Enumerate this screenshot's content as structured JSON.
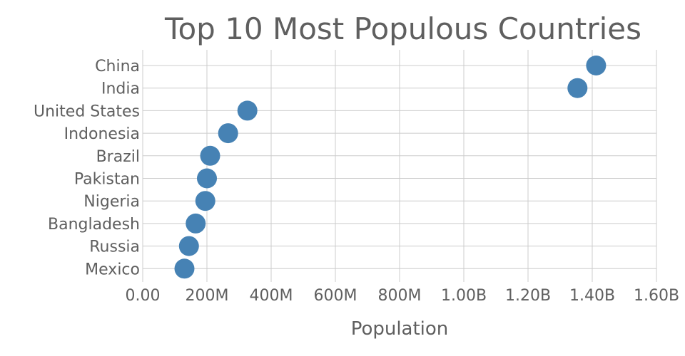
{
  "chart_data": {
    "type": "scatter",
    "title": "Top 10 Most Populous Countries",
    "xlabel": "Population",
    "ylabel": "",
    "xlim": [
      0,
      1600000000
    ],
    "x_ticks": [
      {
        "value": 0,
        "label": "0.00"
      },
      {
        "value": 200000000,
        "label": "200M"
      },
      {
        "value": 400000000,
        "label": "400M"
      },
      {
        "value": 600000000,
        "label": "600M"
      },
      {
        "value": 800000000,
        "label": "800M"
      },
      {
        "value": 1000000000,
        "label": "1.00B"
      },
      {
        "value": 1200000000,
        "label": "1.20B"
      },
      {
        "value": 1400000000,
        "label": "1.40B"
      },
      {
        "value": 1600000000,
        "label": "1.60B"
      }
    ],
    "categories": [
      "China",
      "India",
      "United States",
      "Indonesia",
      "Brazil",
      "Pakistan",
      "Nigeria",
      "Bangladesh",
      "Russia",
      "Mexico"
    ],
    "values": [
      1412000000,
      1354000000,
      326000000,
      266000000,
      210000000,
      200000000,
      195000000,
      165000000,
      144000000,
      130000000
    ],
    "color": "#4682b4",
    "grid": true,
    "legend": "none"
  }
}
